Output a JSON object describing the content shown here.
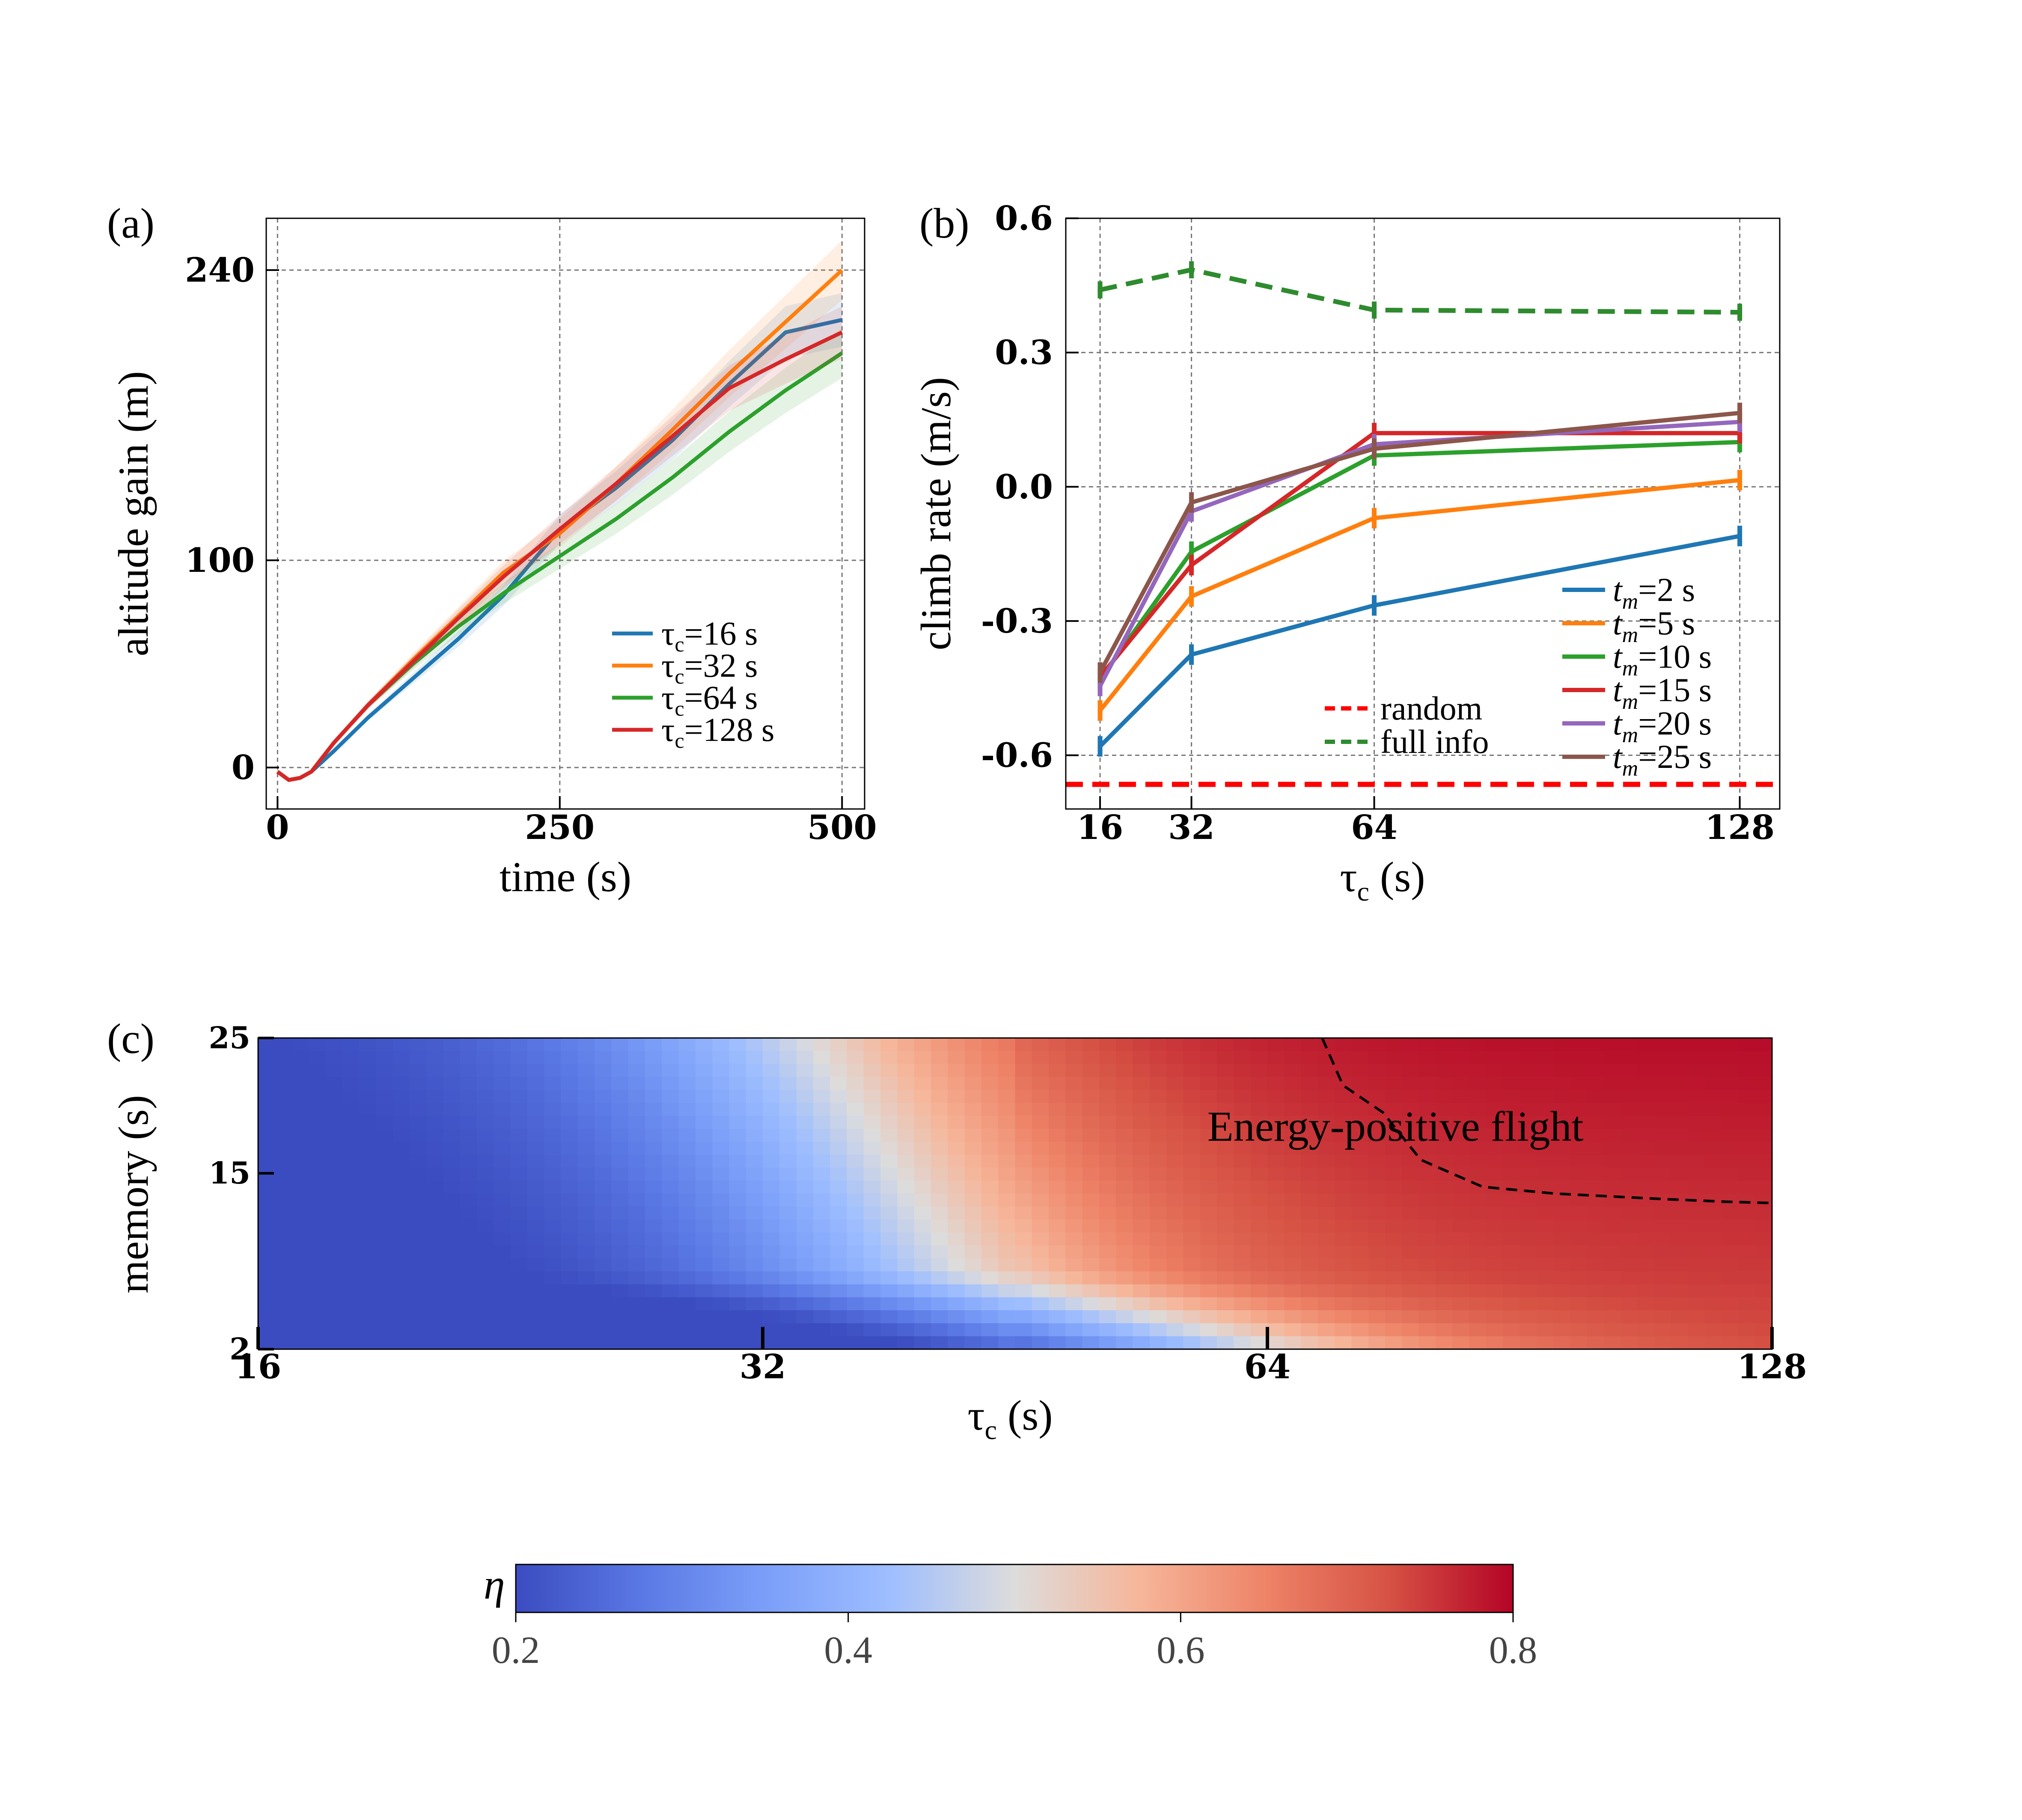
{
  "colors": {
    "blue": "#1f77b4",
    "orange": "#ff7f0e",
    "green": "#2ca02c",
    "red": "#d62728",
    "purple": "#9467bd",
    "brown": "#8c564b",
    "random": "#ff0000",
    "fullinfo": "#2e8b2e",
    "grid": "#777777"
  },
  "chart_data": [
    {
      "panel": "(a)",
      "type": "line",
      "xlabel": "time (s)",
      "ylabel": "altitude gain (m)",
      "xlim": [
        -10,
        520
      ],
      "ylim": [
        -20,
        265
      ],
      "xticks": [
        "0",
        "250",
        "500"
      ],
      "xtick_values": [
        0,
        250,
        500
      ],
      "yticks": [
        "0",
        "100",
        "240"
      ],
      "ytick_values": [
        0,
        100,
        240
      ],
      "legend_position": "lower-right",
      "series": [
        {
          "name": "τc=16 s",
          "sym": "τ",
          "sub": "c",
          "rest": "=16 s",
          "color_key": "blue",
          "x": [
            0,
            10,
            20,
            30,
            50,
            80,
            120,
            160,
            200,
            250,
            300,
            350,
            400,
            450,
            500
          ],
          "y": [
            -2,
            -6,
            -5,
            -2,
            8,
            24,
            43,
            62,
            83,
            115,
            135,
            158,
            185,
            210,
            216
          ]
        },
        {
          "name": "τc=32 s",
          "sym": "τ",
          "sub": "c",
          "rest": "=32 s",
          "color_key": "orange",
          "x": [
            0,
            10,
            20,
            30,
            50,
            80,
            120,
            160,
            200,
            250,
            300,
            350,
            400,
            450,
            500
          ],
          "y": [
            -2,
            -6,
            -5,
            -2,
            12,
            30,
            52,
            73,
            94,
            113,
            137,
            163,
            190,
            215,
            240
          ]
        },
        {
          "name": "τc=64 s",
          "sym": "τ",
          "sub": "c",
          "rest": "=64 s",
          "color_key": "green",
          "x": [
            0,
            10,
            20,
            30,
            50,
            80,
            120,
            160,
            200,
            250,
            300,
            350,
            400,
            450,
            500
          ],
          "y": [
            -2,
            -6,
            -5,
            -2,
            12,
            30,
            50,
            68,
            84,
            102,
            120,
            140,
            162,
            182,
            200
          ]
        },
        {
          "name": "τc=128 s",
          "sym": "τ",
          "sub": "c",
          "rest": "=128 s",
          "color_key": "red",
          "x": [
            0,
            10,
            20,
            30,
            50,
            80,
            120,
            160,
            200,
            250,
            300,
            350,
            400,
            450,
            500
          ],
          "y": [
            -2,
            -6,
            -5,
            -2,
            12,
            30,
            51,
            72,
            92,
            115,
            137,
            160,
            183,
            197,
            210
          ]
        }
      ]
    },
    {
      "panel": "(b)",
      "type": "line",
      "xlabel_sym": "τ",
      "xlabel_sub": "c",
      "xlabel_rest": " (s)",
      "ylabel": "climb rate (m/s)",
      "xlim": [
        10,
        135
      ],
      "ylim": [
        -0.72,
        0.6
      ],
      "xticks": [
        "16",
        "32",
        "64",
        "128"
      ],
      "xtick_values": [
        16,
        32,
        64,
        128
      ],
      "yticks": [
        "0.6",
        "0.3",
        "0.0",
        "-0.3",
        "-0.6"
      ],
      "ytick_values": [
        0.6,
        0.3,
        0.0,
        -0.3,
        -0.6
      ],
      "categories": [
        16,
        32,
        64,
        128
      ],
      "series": [
        {
          "name": "tm=2 s",
          "sym": "t",
          "sub": "m",
          "rest": "=2 s",
          "color_key": "blue",
          "values": [
            -0.58,
            -0.375,
            -0.265,
            -0.11
          ],
          "err": [
            0.015,
            0.015,
            0.02,
            0.02
          ]
        },
        {
          "name": "tm=5 s",
          "sym": "t",
          "sub": "m",
          "rest": "=5 s",
          "color_key": "orange",
          "values": [
            -0.5,
            -0.245,
            -0.07,
            0.015
          ],
          "err": [
            0.015,
            0.015,
            0.02,
            0.02
          ]
        },
        {
          "name": "tm=10 s",
          "sym": "t",
          "sub": "m",
          "rest": "=10 s",
          "color_key": "green",
          "values": [
            -0.43,
            -0.145,
            0.07,
            0.1
          ],
          "err": [
            0.015,
            0.015,
            0.015,
            0.015
          ]
        },
        {
          "name": "tm=15 s",
          "sym": "t",
          "sub": "m",
          "rest": "=15 s",
          "color_key": "red",
          "values": [
            -0.425,
            -0.175,
            0.12,
            0.12
          ],
          "err": [
            0.015,
            0.02,
            0.02,
            0.015
          ]
        },
        {
          "name": "tm=20 s",
          "sym": "t",
          "sub": "m",
          "rest": "=20 s",
          "color_key": "purple",
          "values": [
            -0.445,
            -0.055,
            0.095,
            0.145
          ],
          "err": [
            0.015,
            0.015,
            0.015,
            0.015
          ]
        },
        {
          "name": "tm=25 s",
          "sym": "t",
          "sub": "m",
          "rest": "=25 s",
          "color_key": "brown",
          "values": [
            -0.415,
            -0.035,
            0.085,
            0.165
          ],
          "err": [
            0.015,
            0.015,
            0.015,
            0.015
          ]
        }
      ],
      "reference_lines": [
        {
          "name": "random",
          "color_key": "random",
          "value": -0.665
        },
        {
          "name": "full info",
          "color_key": "fullinfo",
          "values": [
            0.44,
            0.485,
            0.395,
            0.39
          ],
          "err": [
            0.01,
            0.01,
            0.01,
            0.01
          ]
        }
      ]
    },
    {
      "panel": "(c)",
      "type": "heatmap",
      "xlabel_sym": "τ",
      "xlabel_sub": "c",
      "xlabel_rest": " (s)",
      "ylabel": "memory (s)",
      "xticks": [
        "16",
        "32",
        "64",
        "128"
      ],
      "xtick_values": [
        16,
        32,
        64,
        128
      ],
      "yticks": [
        "2",
        "15",
        "25"
      ],
      "ytick_values": [
        2,
        15,
        25
      ],
      "annotation": "Energy-positive flight",
      "boundary_contour": {
        "x": [
          69,
          71,
          75,
          79,
          86,
          95,
          110,
          120,
          128
        ],
        "y": [
          25,
          21.5,
          19.5,
          16,
          14,
          13.5,
          13.1,
          12.9,
          12.8
        ]
      },
      "colorbar": {
        "label": "η",
        "range": [
          0.2,
          0.8
        ],
        "ticks": [
          "0.2",
          "0.4",
          "0.6",
          "0.8"
        ],
        "tick_values": [
          0.2,
          0.4,
          0.6,
          0.8
        ],
        "colormap": "coolwarm"
      }
    }
  ]
}
